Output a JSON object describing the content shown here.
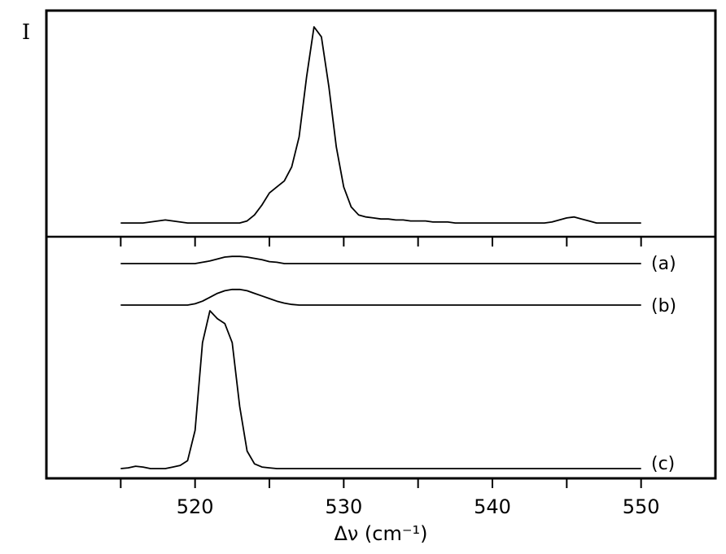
{
  "chart_data": [
    {
      "type": "line",
      "panel": "top",
      "ylabel": "I",
      "xlim": [
        510,
        555
      ],
      "x_step": 0.5,
      "x_start": 515,
      "series": [
        {
          "name": "",
          "values": [
            0.02,
            0.02,
            0.02,
            0.02,
            0.025,
            0.03,
            0.035,
            0.03,
            0.025,
            0.02,
            0.02,
            0.02,
            0.02,
            0.02,
            0.02,
            0.02,
            0.02,
            0.03,
            0.06,
            0.11,
            0.17,
            0.2,
            0.23,
            0.3,
            0.45,
            0.75,
            1.0,
            0.95,
            0.7,
            0.4,
            0.2,
            0.1,
            0.06,
            0.05,
            0.045,
            0.04,
            0.04,
            0.035,
            0.035,
            0.03,
            0.03,
            0.03,
            0.025,
            0.025,
            0.025,
            0.02,
            0.02,
            0.02,
            0.02,
            0.02,
            0.02,
            0.02,
            0.02,
            0.02,
            0.02,
            0.02,
            0.02,
            0.02,
            0.025,
            0.035,
            0.045,
            0.05,
            0.04,
            0.03,
            0.02,
            0.02,
            0.02,
            0.02,
            0.02,
            0.02,
            0.02
          ]
        }
      ]
    },
    {
      "type": "line",
      "panel": "bottom",
      "xlabel": "Δν (cm⁻¹)",
      "xlim": [
        510,
        555
      ],
      "xticks": [
        520,
        530,
        540,
        550
      ],
      "x_step": 0.5,
      "x_start": 515,
      "series": [
        {
          "name": "(a)",
          "values": [
            0,
            0,
            0,
            0,
            0,
            0,
            0,
            0,
            0,
            0,
            0,
            0.01,
            0.02,
            0.035,
            0.05,
            0.055,
            0.055,
            0.05,
            0.04,
            0.03,
            0.015,
            0.01,
            0,
            0,
            0,
            0,
            0,
            0,
            0,
            0,
            0,
            0,
            0,
            0,
            0,
            0,
            0,
            0,
            0,
            0,
            0,
            0,
            0,
            0,
            0,
            0,
            0,
            0,
            0,
            0,
            0,
            0,
            0,
            0,
            0,
            0,
            0,
            0,
            0,
            0,
            0,
            0,
            0,
            0,
            0,
            0,
            0,
            0,
            0,
            0,
            0
          ]
        },
        {
          "name": "(b)",
          "values": [
            0,
            0,
            0,
            0,
            0,
            0,
            0,
            0,
            0,
            0,
            0.01,
            0.03,
            0.06,
            0.09,
            0.11,
            0.12,
            0.12,
            0.11,
            0.09,
            0.07,
            0.05,
            0.03,
            0.015,
            0.005,
            0,
            0,
            0,
            0,
            0,
            0,
            0,
            0,
            0,
            0,
            0,
            0,
            0,
            0,
            0,
            0,
            0,
            0,
            0,
            0,
            0,
            0,
            0,
            0,
            0,
            0,
            0,
            0,
            0,
            0,
            0,
            0,
            0,
            0,
            0,
            0,
            0,
            0,
            0,
            0,
            0,
            0,
            0,
            0,
            0,
            0,
            0
          ]
        },
        {
          "name": "(c)",
          "values": [
            0.01,
            0.015,
            0.025,
            0.02,
            0.01,
            0.01,
            0.01,
            0.02,
            0.03,
            0.06,
            0.25,
            0.8,
            1.0,
            0.95,
            0.92,
            0.8,
            0.4,
            0.12,
            0.04,
            0.02,
            0.015,
            0.01,
            0.01,
            0.01,
            0.01,
            0.01,
            0.01,
            0.01,
            0.01,
            0.01,
            0.01,
            0.01,
            0.01,
            0.01,
            0.01,
            0.01,
            0.01,
            0.01,
            0.01,
            0.01,
            0.01,
            0.01,
            0.01,
            0.01,
            0.01,
            0.01,
            0.01,
            0.01,
            0.01,
            0.01,
            0.01,
            0.01,
            0.01,
            0.01,
            0.01,
            0.01,
            0.01,
            0.01,
            0.01,
            0.01,
            0.01,
            0.01,
            0.01,
            0.01,
            0.01,
            0.01,
            0.01,
            0.01,
            0.01,
            0.01,
            0.01
          ]
        }
      ]
    }
  ]
}
